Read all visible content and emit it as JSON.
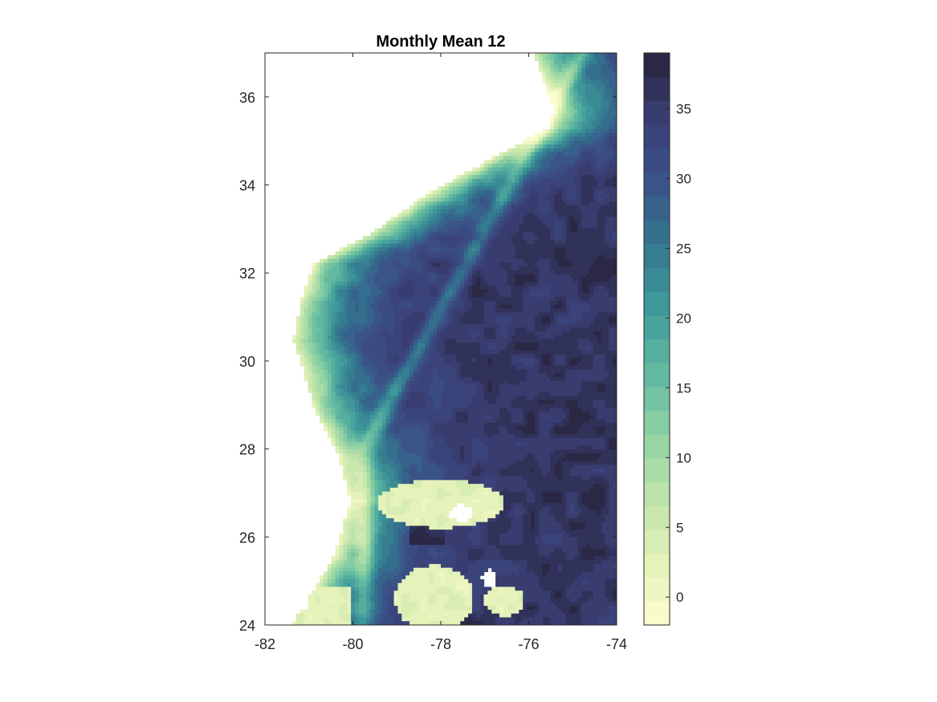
{
  "chart_data": {
    "type": "heatmap",
    "title": "Monthly Mean 12",
    "xlabel": "",
    "ylabel": "",
    "xlim": [
      -82,
      -74
    ],
    "ylim": [
      24,
      37
    ],
    "x_ticks": [
      -82,
      -80,
      -78,
      -76,
      -74
    ],
    "y_ticks": [
      24,
      26,
      28,
      30,
      32,
      34,
      36
    ],
    "colorbar": {
      "range": [
        -2,
        39
      ],
      "ticks": [
        0,
        5,
        10,
        15,
        20,
        25,
        30,
        35
      ],
      "levels": 24,
      "colors": [
        "#fefdcf",
        "#e3f1b8",
        "#bfe4a9",
        "#8fd2a4",
        "#5fb7a0",
        "#3f999a",
        "#34768f",
        "#3a5288",
        "#3a3e73",
        "#262339"
      ]
    },
    "land_color": "#ffffff",
    "grid": false
  }
}
